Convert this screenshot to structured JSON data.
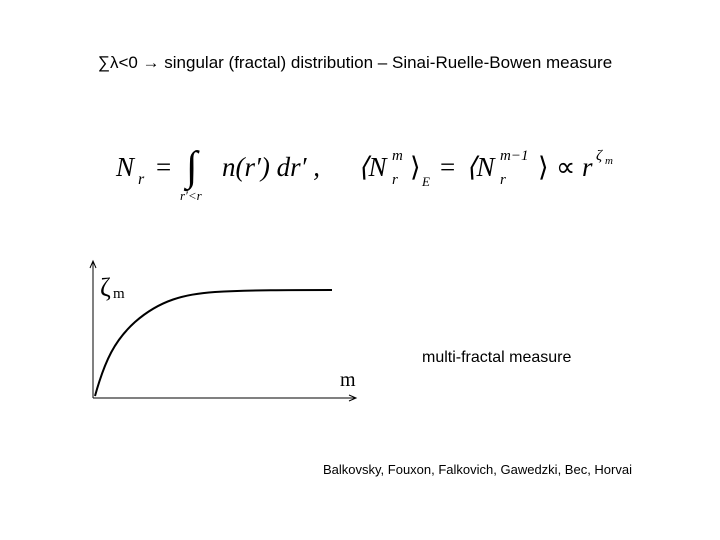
{
  "title": "∑λ<0 → singular (fractal) distribution – Sinai-Ruelle-Bowen measure",
  "formula": {
    "lhs_N": "N",
    "lhs_sub": "r",
    "eq1": "=",
    "integral": "∫",
    "int_lower": "r′<r",
    "integrand": "n(r′) dr′ ,",
    "avg_open": "⟨N",
    "avg_sup": "m",
    "avg_sub": "r",
    "avg_close": "⟩",
    "avg_E": "E",
    "eq2": "=",
    "avg2_open": "⟨N",
    "avg2_sup": "m−1",
    "avg2_sub": "r",
    "avg2_close": "⟩",
    "prop": "∝",
    "r": "r",
    "r_sup": "ζ",
    "r_sup_sub": "m"
  },
  "graph": {
    "y_symbol": "ζ",
    "y_sub": "m",
    "x_label": "m"
  },
  "note": "multi-fractal measure",
  "citation": "Balkovsky, Fouxon, Falkovich, Gawedzki, Bec, Horvai"
}
